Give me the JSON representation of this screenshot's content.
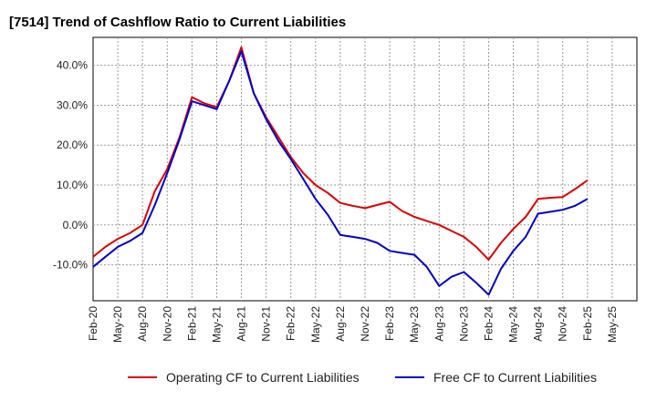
{
  "chart_data": {
    "type": "line",
    "title": "[7514]  Trend of Cashflow Ratio to Current Liabilities",
    "xlabel": "",
    "ylabel": "",
    "ylim": [
      -19,
      47
    ],
    "yticks": [
      "40.0%",
      "30.0%",
      "20.0%",
      "10.0%",
      "0.0%",
      "-10.0%"
    ],
    "ytick_values": [
      40,
      30,
      20,
      10,
      0,
      -10
    ],
    "x_tick_labels": [
      "Feb-20",
      "May-20",
      "Aug-20",
      "Nov-20",
      "Feb-21",
      "May-21",
      "Aug-21",
      "Nov-21",
      "Feb-22",
      "May-22",
      "Aug-22",
      "Nov-22",
      "Feb-23",
      "May-23",
      "Aug-23",
      "Nov-23",
      "Feb-24",
      "May-24",
      "Aug-24",
      "Nov-24",
      "Feb-25",
      "May-25"
    ],
    "grid": true,
    "legend_position": "bottom",
    "series": [
      {
        "name": "Operating CF to Current Liabilities",
        "color": "#dd0000",
        "values": [
          -8.0,
          -5.5,
          -3.5,
          -2.0,
          0.0,
          8.5,
          14.0,
          22.0,
          32.0,
          30.5,
          29.5,
          36.0,
          44.5,
          33.0,
          27.0,
          22.0,
          17.0,
          13.0,
          10.0,
          8.0,
          5.5,
          4.8,
          4.2,
          5.0,
          5.8,
          3.5,
          2.0,
          1.0,
          0.0,
          -1.5,
          -3.0,
          -5.5,
          -8.7,
          -4.5,
          -1.0,
          2.0,
          6.5,
          6.8,
          7.0,
          9.0,
          11.2
        ]
      },
      {
        "name": "Free CF to Current Liabilities",
        "color": "#0000cc",
        "values": [
          -10.5,
          -8.0,
          -5.5,
          -4.0,
          -2.0,
          5.0,
          13.0,
          21.5,
          31.0,
          30.0,
          29.0,
          36.0,
          43.5,
          33.0,
          26.5,
          21.0,
          16.5,
          11.5,
          6.5,
          2.5,
          -2.5,
          -3.0,
          -3.5,
          -4.5,
          -6.5,
          -7.0,
          -7.5,
          -10.5,
          -15.3,
          -13.0,
          -11.8,
          -14.5,
          -17.5,
          -11.0,
          -6.5,
          -3.0,
          2.8,
          3.3,
          3.8,
          4.8,
          6.5
        ]
      }
    ]
  }
}
